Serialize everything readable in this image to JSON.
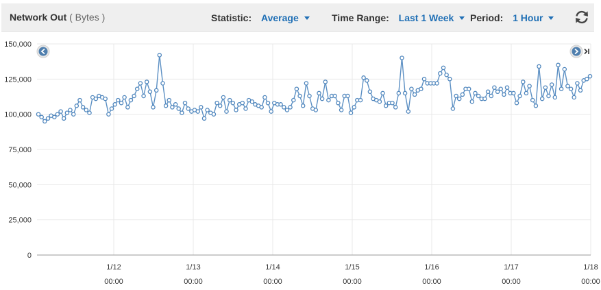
{
  "header": {
    "title": "Network Out",
    "unit": "( Bytes )",
    "statistic_label": "Statistic:",
    "statistic_value": "Average",
    "time_range_label": "Time Range:",
    "time_range_value": "Last 1 Week",
    "period_label": "Period:",
    "period_value": "1 Hour",
    "refresh_icon": "refresh-icon"
  },
  "nav": {
    "prev_icon": "chevron-left-icon",
    "next_icon": "chevron-right-end-icon"
  },
  "chart_data": {
    "type": "line",
    "ylim": [
      0,
      150000
    ],
    "yticks": [
      "0",
      "25,000",
      "50,000",
      "75,000",
      "100,000",
      "125,000",
      "150,000"
    ],
    "ytick_values": [
      0,
      25000,
      50000,
      75000,
      100000,
      125000,
      150000
    ],
    "xticks": [
      {
        "date": "1/12",
        "time": "00:00"
      },
      {
        "date": "1/13",
        "time": "00:00"
      },
      {
        "date": "1/14",
        "time": "00:00"
      },
      {
        "date": "1/15",
        "time": "00:00"
      },
      {
        "date": "1/16",
        "time": "00:00"
      },
      {
        "date": "1/17",
        "time": "00:00"
      },
      {
        "date": "1/18",
        "time": "00:00"
      }
    ],
    "grid": true,
    "line_color": "#5b8fc3",
    "series": [
      {
        "values": [
          100000,
          98000,
          95000,
          97000,
          99000,
          98000,
          100000,
          102000,
          97000,
          101000,
          103000,
          100000,
          106000,
          110000,
          105000,
          103000,
          101000,
          112000,
          111000,
          113000,
          112000,
          111000,
          100000,
          104000,
          107000,
          110000,
          108000,
          112000,
          105000,
          110000,
          113000,
          118000,
          122000,
          113000,
          123000,
          116000,
          105000,
          117000,
          142000,
          122000,
          106000,
          110000,
          105000,
          107000,
          104000,
          101000,
          108000,
          104000,
          102000,
          103000,
          102000,
          105000,
          97000,
          103000,
          101000,
          100000,
          108000,
          106000,
          112000,
          102000,
          110000,
          108000,
          103000,
          107000,
          108000,
          104000,
          110000,
          109000,
          107000,
          106000,
          105000,
          112000,
          108000,
          102000,
          108000,
          107000,
          107000,
          105000,
          103000,
          105000,
          110000,
          118000,
          113000,
          106000,
          122000,
          113000,
          104000,
          103000,
          115000,
          111000,
          123000,
          110000,
          113000,
          113000,
          108000,
          103000,
          113000,
          113000,
          101000,
          105000,
          110000,
          110000,
          126000,
          124000,
          116000,
          111000,
          110000,
          109000,
          115000,
          106000,
          108000,
          108000,
          105000,
          115000,
          140000,
          115000,
          102000,
          118000,
          114000,
          117000,
          118000,
          125000,
          122000,
          122000,
          122000,
          122000,
          129000,
          133000,
          128000,
          125000,
          104000,
          113000,
          111000,
          114000,
          118000,
          118000,
          109000,
          115000,
          113000,
          111000,
          111000,
          116000,
          113000,
          119000,
          116000,
          118000,
          114000,
          119000,
          115000,
          115000,
          108000,
          113000,
          123000,
          115000,
          120000,
          110000,
          106000,
          134000,
          111000,
          119000,
          113000,
          121000,
          112000,
          135000,
          118000,
          132000,
          120000,
          118000,
          112000,
          122000,
          117000,
          124000,
          125000,
          127000
        ]
      }
    ]
  }
}
